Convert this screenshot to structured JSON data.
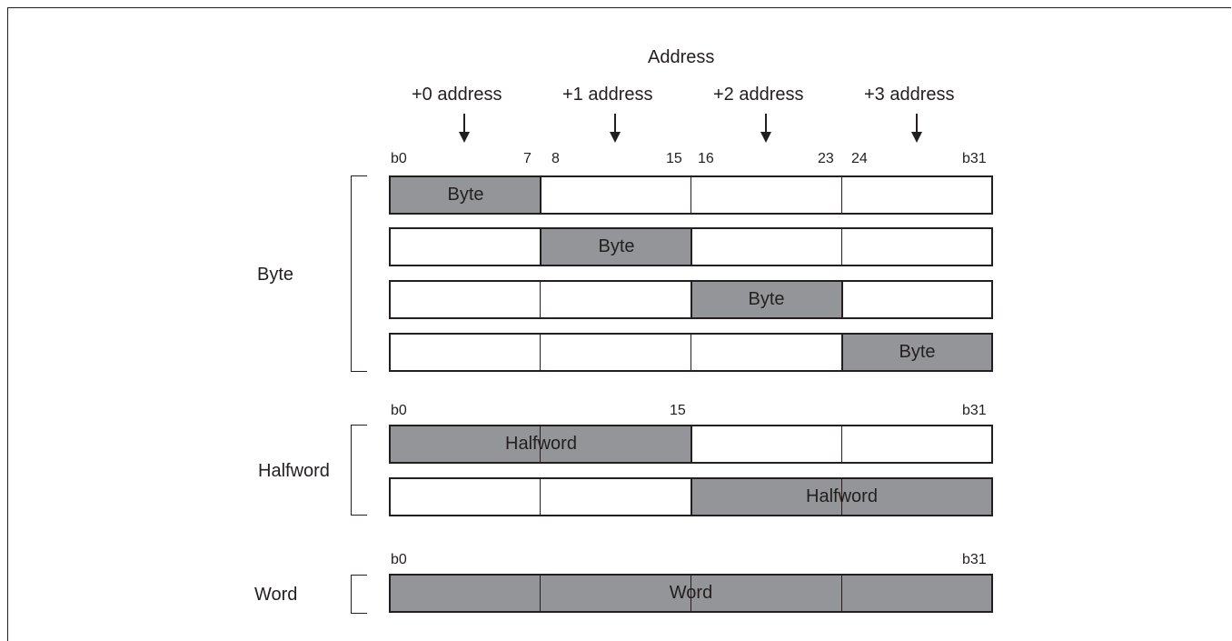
{
  "header": {
    "title": "Address",
    "columns": [
      "+0 address",
      "+1 address",
      "+2 address",
      "+3 address"
    ]
  },
  "bit_labels": {
    "byte": {
      "c0": "b0",
      "c1": "7",
      "c2": "8",
      "c3": "15",
      "c4": "16",
      "c5": "23",
      "c6": "24",
      "c7": "b31"
    },
    "halfword": {
      "start": "b0",
      "mid": "15",
      "end": "b31"
    },
    "word": {
      "start": "b0",
      "end": "b31"
    }
  },
  "groups": {
    "byte": "Byte",
    "halfword": "Halfword",
    "word": "Word"
  },
  "cells": {
    "byte": "Byte",
    "halfword": "Halfword",
    "word": "Word"
  },
  "colors": {
    "shade": "#939598",
    "line": "#231f20",
    "background": "#ffffff"
  }
}
